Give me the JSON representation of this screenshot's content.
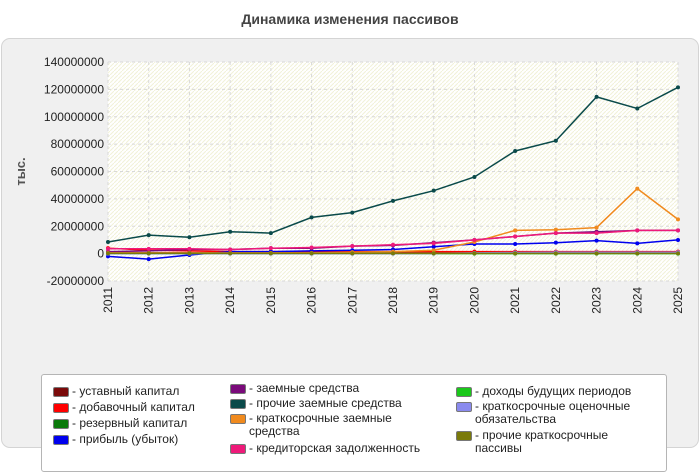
{
  "chart_data": {
    "type": "line",
    "title": "Динамика изменения пассивов",
    "ylabel": "тыс.",
    "xlabel": "",
    "ylim": [
      -20000000,
      140000000
    ],
    "yticks": [
      -20000000,
      0,
      20000000,
      40000000,
      60000000,
      80000000,
      100000000,
      120000000,
      140000000
    ],
    "categories": [
      "2011",
      "2012",
      "2013",
      "2014",
      "2015",
      "2016",
      "2017",
      "2018",
      "2019",
      "2020",
      "2021",
      "2022",
      "2023",
      "2024",
      "2025"
    ],
    "grid": true,
    "legend_position": "bottom",
    "series": [
      {
        "name": "уставный капитал",
        "color": "#7a0a0a",
        "values": [
          500000,
          500000,
          500000,
          500000,
          500000,
          500000,
          500000,
          500000,
          500000,
          500000,
          500000,
          500000,
          500000,
          500000,
          500000
        ]
      },
      {
        "name": "добавочный капитал",
        "color": "#ff0000",
        "values": [
          4000000,
          2500000,
          2000000,
          1500000,
          1500000,
          1500000,
          1500000,
          1500000,
          1500000,
          1500000,
          1500000,
          1500000,
          1500000,
          1500000,
          1500000
        ]
      },
      {
        "name": "резервный капитал",
        "color": "#0a7a0a",
        "values": [
          300000,
          300000,
          300000,
          300000,
          300000,
          300000,
          300000,
          300000,
          300000,
          300000,
          300000,
          300000,
          300000,
          300000,
          300000
        ]
      },
      {
        "name": "прибыль (убыток)",
        "color": "#0000ee",
        "values": [
          -2000000,
          -4000000,
          -1000000,
          1500000,
          1500000,
          2000000,
          2500000,
          3000000,
          5000000,
          7000000,
          7000000,
          8000000,
          9500000,
          7500000,
          10000000
        ]
      },
      {
        "name": "заемные средства",
        "color": "#7a0a7a",
        "values": [
          1500000,
          2000000,
          3000000,
          3000000,
          4000000,
          4000000,
          5500000,
          6000000,
          8000000,
          10000000,
          12500000,
          15000000,
          16000000,
          17000000,
          17000000
        ]
      },
      {
        "name": "прочие заемные средства",
        "color": "#0a4a4a",
        "values": [
          8500000,
          13500000,
          12000000,
          16000000,
          15000000,
          26500000,
          30000000,
          38500000,
          46000000,
          56000000,
          75000000,
          82500000,
          114500000,
          106000000,
          121500000
        ]
      },
      {
        "name": "краткосрочные заемные средства",
        "color": "#f08a1e",
        "values": [
          500000,
          500000,
          500000,
          500000,
          500000,
          500000,
          1000000,
          1500000,
          2500000,
          8500000,
          17000000,
          17500000,
          19000000,
          47500000,
          25000000
        ]
      },
      {
        "name": "кредиторская задолженность",
        "color": "#ee1a7a",
        "values": [
          3500000,
          3500000,
          3500000,
          3000000,
          4000000,
          4500000,
          5500000,
          6500000,
          7500000,
          10000000,
          12500000,
          15000000,
          15000000,
          17000000,
          17000000
        ]
      },
      {
        "name": "доходы будущих периодов",
        "color": "#1ac81a",
        "values": [
          0,
          0,
          0,
          0,
          0,
          0,
          0,
          0,
          0,
          0,
          0,
          0,
          0,
          0,
          0
        ]
      },
      {
        "name": "краткосрочные оценочные обязательства",
        "color": "#8a8aee",
        "values": [
          0,
          0,
          0,
          0,
          0,
          0,
          0,
          0,
          100000,
          500000,
          800000,
          1000000,
          1000000,
          1000000,
          1000000
        ]
      },
      {
        "name": "прочие краткосрочные пассивы",
        "color": "#7a7a0a",
        "values": [
          200000,
          200000,
          200000,
          200000,
          200000,
          200000,
          200000,
          200000,
          200000,
          200000,
          200000,
          200000,
          200000,
          200000,
          200000
        ]
      }
    ]
  }
}
